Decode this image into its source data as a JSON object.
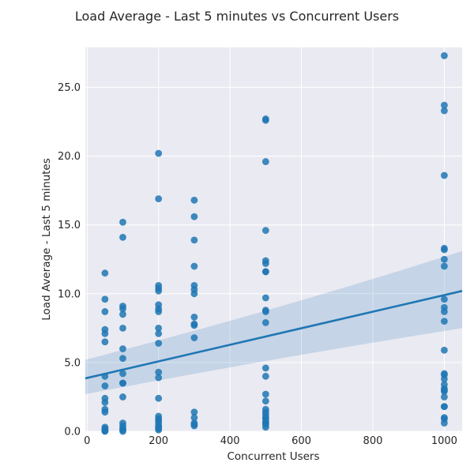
{
  "chart_data": {
    "type": "scatter",
    "title": "Load Average - Last 5 minutes vs Concurrent Users",
    "xlabel": "Concurrent Users",
    "ylabel": "Load Average - Last 5 minutes",
    "xlim": [
      -5,
      1050
    ],
    "ylim": [
      0,
      27.9
    ],
    "xticks": [
      0,
      200,
      400,
      600,
      800,
      1000
    ],
    "xtick_labels": [
      "0",
      "200",
      "400",
      "600",
      "800",
      "1000"
    ],
    "yticks": [
      0,
      5,
      10,
      15,
      20,
      25
    ],
    "ytick_labels": [
      "0.0",
      "5.0",
      "10.0",
      "15.0",
      "20.0",
      "25.0"
    ],
    "grid": true,
    "style": "seaborn-darkgrid",
    "point_color": "#1f77b4",
    "fit_color": "#1f77b4",
    "x": [
      50,
      50,
      50,
      50,
      50,
      50,
      50,
      50,
      50,
      50,
      50,
      50,
      50,
      50,
      50,
      50,
      50,
      100,
      100,
      100,
      100,
      100,
      100,
      100,
      100,
      100,
      100,
      100,
      100,
      100,
      100,
      100,
      100,
      100,
      200,
      200,
      200,
      200,
      200,
      200,
      200,
      200,
      200,
      200,
      200,
      200,
      200,
      200,
      200,
      200,
      200,
      200,
      200,
      200,
      200,
      200,
      300,
      300,
      300,
      300,
      300,
      300,
      300,
      300,
      300,
      300,
      300,
      300,
      300,
      300,
      300,
      300,
      500,
      500,
      500,
      500,
      500,
      500,
      500,
      500,
      500,
      500,
      500,
      500,
      500,
      500,
      500,
      500,
      500,
      500,
      500,
      500,
      500,
      500,
      500,
      500,
      500,
      1000,
      1000,
      1000,
      1000,
      1000,
      1000,
      1000,
      1000,
      1000,
      1000,
      1000,
      1000,
      1000,
      1000,
      1000,
      1000,
      1000,
      1000,
      1000,
      1000,
      1000,
      1000,
      1000,
      1000,
      1000,
      1000
    ],
    "y": [
      11.5,
      9.6,
      8.7,
      7.4,
      7.1,
      6.5,
      4.0,
      3.3,
      2.4,
      2.1,
      1.6,
      1.4,
      0.3,
      0.2,
      0.1,
      0.05,
      0.0,
      15.2,
      14.1,
      9.1,
      8.9,
      8.5,
      7.5,
      6.0,
      5.3,
      4.2,
      3.5,
      3.5,
      2.5,
      0.6,
      0.4,
      0.2,
      0.1,
      0.0,
      20.2,
      16.9,
      10.6,
      10.4,
      10.2,
      9.2,
      8.9,
      8.7,
      7.5,
      7.1,
      6.4,
      4.3,
      3.9,
      2.4,
      1.1,
      0.9,
      0.8,
      0.6,
      0.4,
      0.3,
      0.2,
      0.1,
      16.8,
      15.6,
      13.9,
      12.0,
      10.6,
      10.3,
      10.0,
      8.3,
      7.8,
      7.7,
      6.8,
      1.4,
      1.0,
      0.6,
      0.5,
      0.4,
      22.7,
      22.6,
      19.6,
      14.6,
      12.4,
      12.2,
      11.6,
      11.6,
      9.7,
      8.8,
      8.7,
      7.9,
      4.6,
      4.0,
      2.7,
      2.2,
      1.6,
      1.4,
      1.2,
      1.0,
      0.9,
      0.7,
      0.6,
      0.5,
      0.3,
      27.3,
      23.7,
      23.3,
      18.6,
      13.3,
      13.2,
      12.5,
      12.0,
      9.6,
      9.0,
      8.7,
      8.0,
      5.9,
      4.2,
      4.1,
      3.8,
      3.4,
      3.1,
      3.0,
      2.9,
      2.5,
      1.8,
      1.8,
      1.0,
      0.9,
      0.6
    ],
    "regression": {
      "x": [
        -5,
        1050
      ],
      "y": [
        3.85,
        10.2
      ],
      "ci_lower": [
        2.7,
        7.5
      ],
      "ci_upper": [
        5.2,
        13.1
      ]
    }
  }
}
